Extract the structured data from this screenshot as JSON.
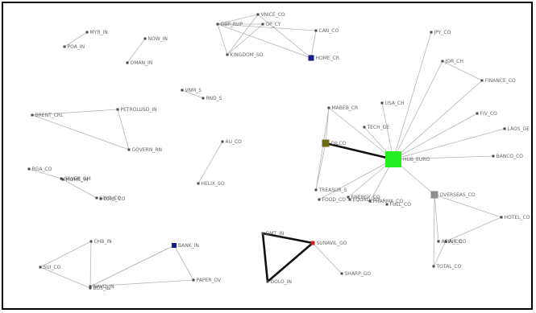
{
  "colors": {
    "edge": "#b5b5b5",
    "strong_edge": "#111111",
    "node_default": "#4a4a4a",
    "hub_green": "#22ee22",
    "olive": "#6b6b18",
    "gray_square": "#8c8c8c",
    "navy": "#1a1a88",
    "red": "#cc2222"
  },
  "nodes": [
    {
      "id": "a1",
      "label": "MYR_IN"
    },
    {
      "id": "a2",
      "label": "POA_IN"
    },
    {
      "id": "b1",
      "label": "NOW_IN"
    },
    {
      "id": "b2",
      "label": "OMAN_IN"
    },
    {
      "id": "c1",
      "label": "VNM_S"
    },
    {
      "id": "c2",
      "label": "RND_S"
    },
    {
      "id": "d1",
      "label": "GBP_RUP"
    },
    {
      "id": "d2",
      "label": "VNICE_CO"
    },
    {
      "id": "d3",
      "label": "CAN_CO"
    },
    {
      "id": "d4",
      "label": "KINGDOM_SO"
    },
    {
      "id": "d5",
      "label": "HOME_CR"
    },
    {
      "id": "d6",
      "label": "GP_CY"
    },
    {
      "id": "e1",
      "label": "BRENT_CRL"
    },
    {
      "id": "e2",
      "label": "PETROLUSD_IN"
    },
    {
      "id": "e3",
      "label": "GOVERN_RN"
    },
    {
      "id": "f1",
      "label": "RGA_CO"
    },
    {
      "id": "f2",
      "label": "SILVER_GM"
    },
    {
      "id": "g1",
      "label": "MOME_IN"
    },
    {
      "id": "g2",
      "label": "SING_CO"
    },
    {
      "id": "g3",
      "label": "LOMI_CO"
    },
    {
      "id": "h1",
      "label": "AU_CO"
    },
    {
      "id": "h2",
      "label": "HELIX_SO"
    },
    {
      "id": "i1",
      "label": "MABEB_CR"
    },
    {
      "id": "i2",
      "label": "OILCO"
    },
    {
      "id": "i3",
      "label": "TREASUR_S"
    },
    {
      "id": "j1",
      "label": "HUB_EURO"
    },
    {
      "id": "j2",
      "label": "OVERSEAS_CO"
    },
    {
      "id": "k1",
      "label": "EQUAD_CO"
    },
    {
      "id": "k2",
      "label": "FULL_CO"
    },
    {
      "id": "l1",
      "label": "CHB_IN"
    },
    {
      "id": "l2",
      "label": "BUS_IN"
    },
    {
      "id": "m1",
      "label": "SUI_CO"
    },
    {
      "id": "m2",
      "label": "NAVD_IN"
    },
    {
      "id": "n1",
      "label": "BANK_IN"
    },
    {
      "id": "n2",
      "label": "PAPER_OV"
    },
    {
      "id": "o1",
      "label": "JPY_CO"
    },
    {
      "id": "o2",
      "label": "FINANCE_CO"
    },
    {
      "id": "o3",
      "label": "JOR_CH"
    },
    {
      "id": "o4",
      "label": "FIV_CO"
    },
    {
      "id": "o5",
      "label": "LAOS_GE"
    },
    {
      "id": "o6",
      "label": "BANCO_CO"
    },
    {
      "id": "o7",
      "label": "USA_CH"
    },
    {
      "id": "o8",
      "label": "TECH_GE"
    },
    {
      "id": "o9",
      "label": "FOOD_CO"
    },
    {
      "id": "o10",
      "label": "ENERGY_CO"
    },
    {
      "id": "o11",
      "label": "PHARMA_CO"
    },
    {
      "id": "p1",
      "label": "HOTEL_CO"
    },
    {
      "id": "p2",
      "label": "ASIA_CO"
    },
    {
      "id": "q1",
      "label": "TOTAL_CO"
    },
    {
      "id": "q2",
      "label": "AIR_CO"
    },
    {
      "id": "r1",
      "label": "OMT_IN"
    },
    {
      "id": "r2",
      "label": "SUNAVIL_GO"
    },
    {
      "id": "r3",
      "label": "DOLO_IN"
    },
    {
      "id": "r4",
      "label": "SHARP_GO"
    }
  ]
}
